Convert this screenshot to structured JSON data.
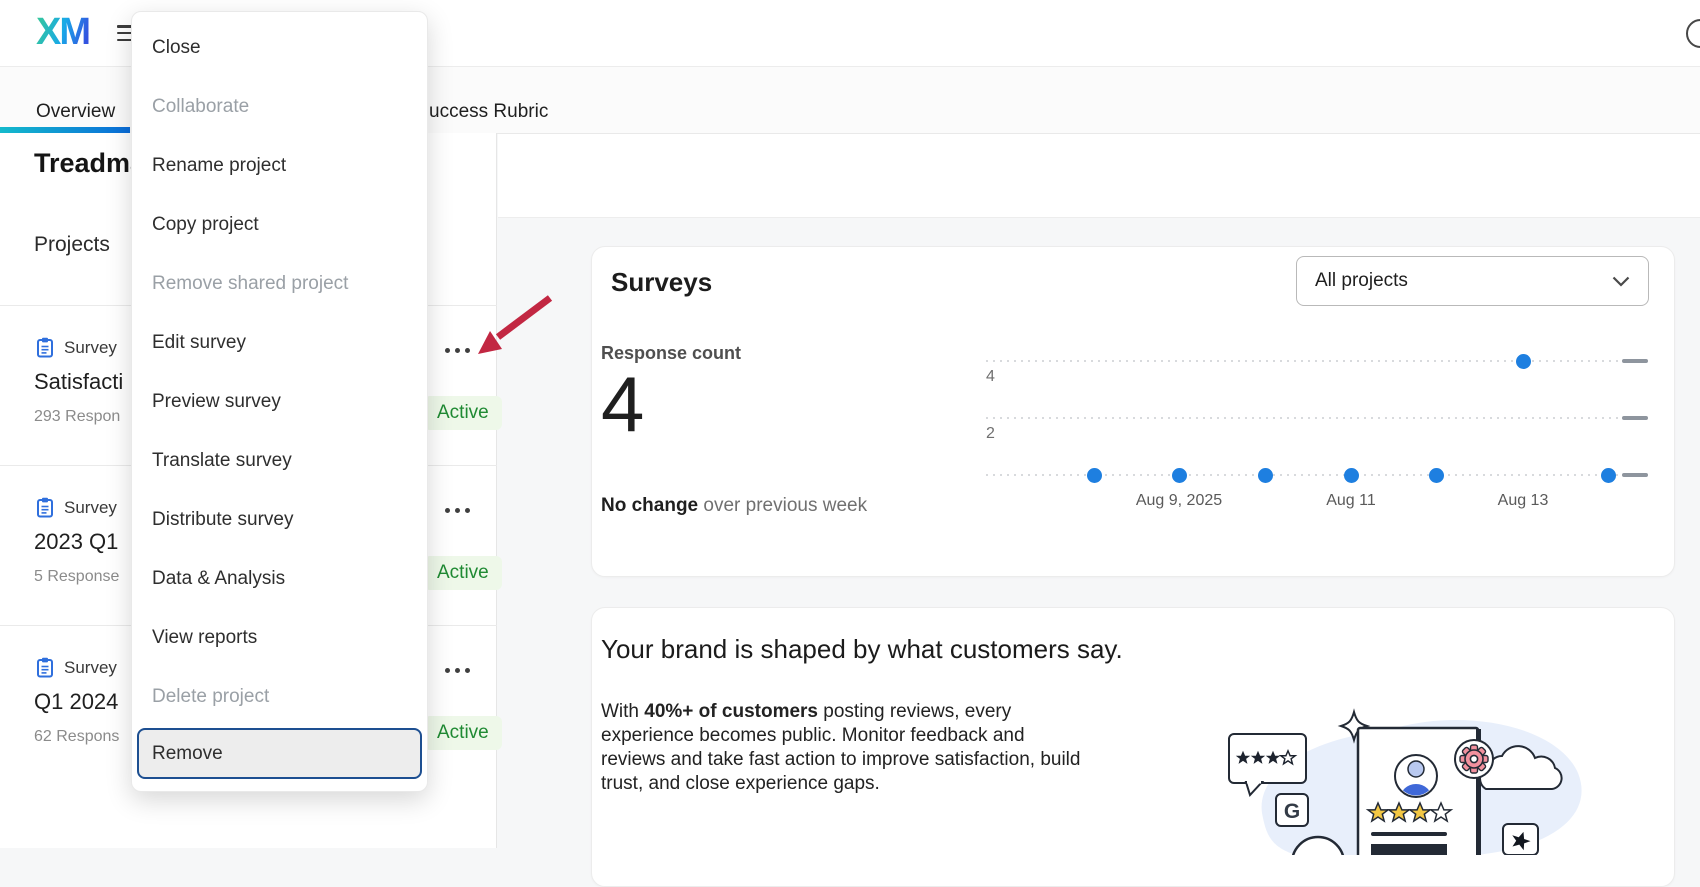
{
  "topbar": {
    "logo": "XM"
  },
  "tabs": {
    "overview_label": "Overview",
    "partial_tab_label": "uccess Rubric"
  },
  "context_menu": {
    "items": [
      {
        "label": "Close",
        "disabled": false
      },
      {
        "label": "Collaborate",
        "disabled": true
      },
      {
        "label": "Rename project",
        "disabled": false
      },
      {
        "label": "Copy project",
        "disabled": false
      },
      {
        "label": "Remove shared project",
        "disabled": true
      },
      {
        "label": "Edit survey",
        "disabled": false
      },
      {
        "label": "Preview survey",
        "disabled": false
      },
      {
        "label": "Translate survey",
        "disabled": false
      },
      {
        "label": "Distribute survey",
        "disabled": false
      },
      {
        "label": "Data & Analysis",
        "disabled": false
      },
      {
        "label": "View reports",
        "disabled": false
      },
      {
        "label": "Delete project",
        "disabled": true
      },
      {
        "label": "Remove",
        "disabled": false,
        "focused": true
      }
    ]
  },
  "left_panel": {
    "title_partial": "Treadma",
    "section_label": "Projects",
    "projects": [
      {
        "type_label": "Survey",
        "title": "Satisfacti",
        "responses": "293 Respon",
        "status": "Active"
      },
      {
        "type_label": "Survey",
        "title": "2023 Q1",
        "responses": "5 Response",
        "status": "Active"
      },
      {
        "type_label": "Survey",
        "title": "Q1 2024",
        "responses": "62 Respons",
        "status": "Active"
      }
    ]
  },
  "surveys_card": {
    "title": "Surveys",
    "filter_value": "All projects",
    "metric_label": "Response count",
    "metric_value": "4",
    "change_emphasis": "No change",
    "change_rest": " over previous week"
  },
  "chart_data": {
    "type": "scatter",
    "x": [
      "Aug 8",
      "Aug 9",
      "Aug 10",
      "Aug 11",
      "Aug 12",
      "Aug 13",
      "Aug 14"
    ],
    "values": [
      0,
      0,
      0,
      0,
      0,
      4,
      0
    ],
    "x_tick_labels": [
      {
        "index": 1,
        "label": "Aug 9, 2025"
      },
      {
        "index": 3,
        "label": "Aug 11"
      },
      {
        "index": 5,
        "label": "Aug 13"
      }
    ],
    "y_ticks": [
      {
        "value": 4,
        "label": "4"
      },
      {
        "value": 2,
        "label": "2"
      }
    ],
    "ylim": [
      0,
      4
    ],
    "grid": "dotted",
    "legend": "none",
    "point_color": "#1e7fe0"
  },
  "brand_card": {
    "title": "Your brand is shaped by what customers say.",
    "body": {
      "prefix": "With ",
      "bold": "40%+ of customers",
      "line1_rest": " posting reviews, every",
      "lines": [
        "experience becomes public. Monitor feedback and",
        "reviews and take fast action to improve satisfaction, build",
        "trust, and close experience gaps."
      ]
    }
  },
  "colors": {
    "accent_blue": "#1e7fe0",
    "active_green_text": "#1f8a33",
    "active_green_bg": "#eef8e9",
    "arrow_red": "#c22742",
    "focus_border": "#1d4f91",
    "tab_underline_start": "#14bacc",
    "tab_underline_end": "#0a6cd9"
  }
}
